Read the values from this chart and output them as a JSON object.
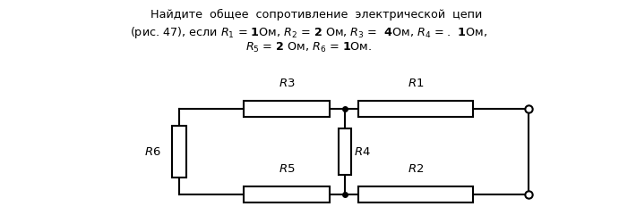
{
  "text_lines": [
    "    Найдите  общее  сопротивление  электрической  цепи",
    "(рис. 47), если $R_1$ = $\\mathbf{1}$Ом, $R_2$ = $\\mathbf{2}$ Ом, $R_3$ =  $\\mathbf{4}$Ом, $R_4$ = .  $\\mathbf{1}$Ом,",
    "$R_5$ = $\\mathbf{2}$ Ом, $R_6$ = $\\mathbf{1}$Ом."
  ],
  "bg_color": "#ffffff",
  "line_color": "#000000"
}
